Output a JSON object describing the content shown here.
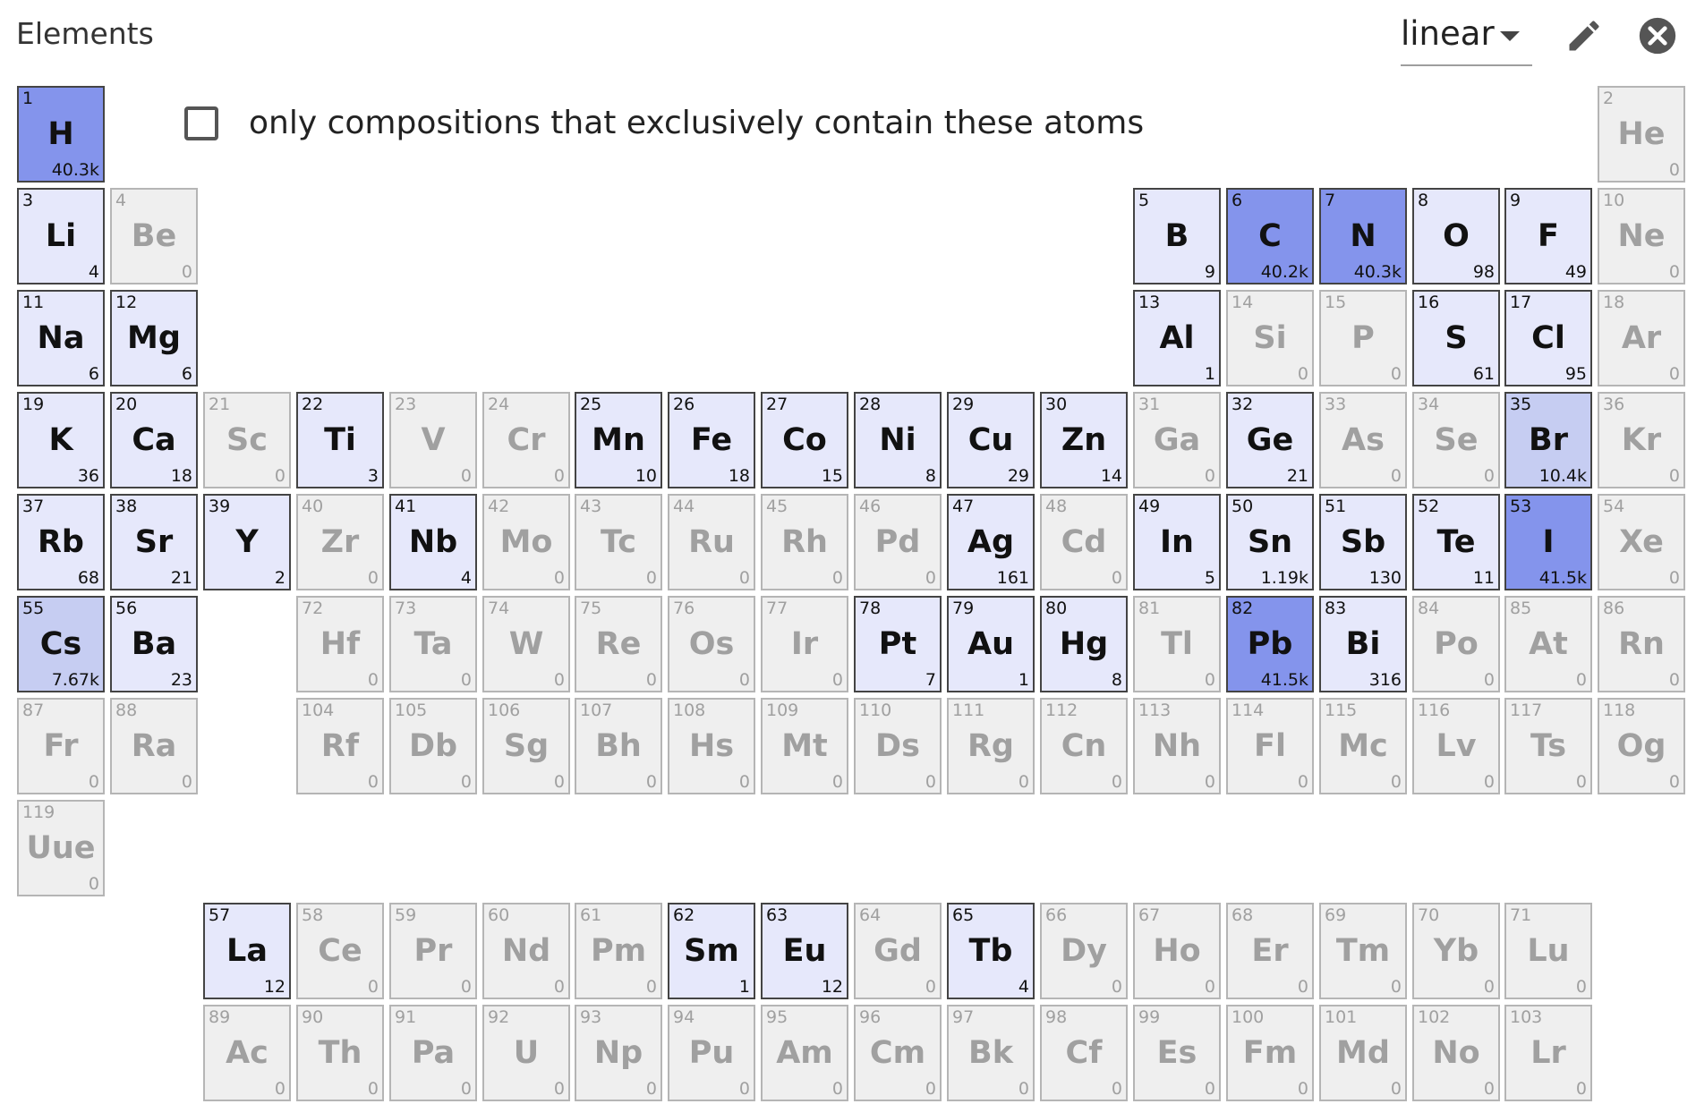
{
  "header": {
    "title": "Elements",
    "scale_value": "linear"
  },
  "filter": {
    "label": "only compositions that exclusively contain these atoms",
    "checked": false
  },
  "colors": {
    "inactive_fill": "#efefef",
    "light_fill": "#e6e8fb",
    "mid_fill": "#c6cdf2",
    "strong_fill": "#8494ec"
  },
  "elements": [
    {
      "z": "1",
      "symbol": "H",
      "count": "40.3k",
      "row": 1,
      "col": 1,
      "tone": "strong"
    },
    {
      "z": "2",
      "symbol": "He",
      "count": "0",
      "row": 1,
      "col": 18,
      "tone": "none"
    },
    {
      "z": "3",
      "symbol": "Li",
      "count": "4",
      "row": 2,
      "col": 1,
      "tone": "light"
    },
    {
      "z": "4",
      "symbol": "Be",
      "count": "0",
      "row": 2,
      "col": 2,
      "tone": "none"
    },
    {
      "z": "5",
      "symbol": "B",
      "count": "9",
      "row": 2,
      "col": 13,
      "tone": "light"
    },
    {
      "z": "6",
      "symbol": "C",
      "count": "40.2k",
      "row": 2,
      "col": 14,
      "tone": "strong"
    },
    {
      "z": "7",
      "symbol": "N",
      "count": "40.3k",
      "row": 2,
      "col": 15,
      "tone": "strong"
    },
    {
      "z": "8",
      "symbol": "O",
      "count": "98",
      "row": 2,
      "col": 16,
      "tone": "light"
    },
    {
      "z": "9",
      "symbol": "F",
      "count": "49",
      "row": 2,
      "col": 17,
      "tone": "light"
    },
    {
      "z": "10",
      "symbol": "Ne",
      "count": "0",
      "row": 2,
      "col": 18,
      "tone": "none"
    },
    {
      "z": "11",
      "symbol": "Na",
      "count": "6",
      "row": 3,
      "col": 1,
      "tone": "light"
    },
    {
      "z": "12",
      "symbol": "Mg",
      "count": "6",
      "row": 3,
      "col": 2,
      "tone": "light"
    },
    {
      "z": "13",
      "symbol": "Al",
      "count": "1",
      "row": 3,
      "col": 13,
      "tone": "light"
    },
    {
      "z": "14",
      "symbol": "Si",
      "count": "0",
      "row": 3,
      "col": 14,
      "tone": "none"
    },
    {
      "z": "15",
      "symbol": "P",
      "count": "0",
      "row": 3,
      "col": 15,
      "tone": "none"
    },
    {
      "z": "16",
      "symbol": "S",
      "count": "61",
      "row": 3,
      "col": 16,
      "tone": "light"
    },
    {
      "z": "17",
      "symbol": "Cl",
      "count": "95",
      "row": 3,
      "col": 17,
      "tone": "light"
    },
    {
      "z": "18",
      "symbol": "Ar",
      "count": "0",
      "row": 3,
      "col": 18,
      "tone": "none"
    },
    {
      "z": "19",
      "symbol": "K",
      "count": "36",
      "row": 4,
      "col": 1,
      "tone": "light"
    },
    {
      "z": "20",
      "symbol": "Ca",
      "count": "18",
      "row": 4,
      "col": 2,
      "tone": "light"
    },
    {
      "z": "21",
      "symbol": "Sc",
      "count": "0",
      "row": 4,
      "col": 3,
      "tone": "none"
    },
    {
      "z": "22",
      "symbol": "Ti",
      "count": "3",
      "row": 4,
      "col": 4,
      "tone": "light"
    },
    {
      "z": "23",
      "symbol": "V",
      "count": "0",
      "row": 4,
      "col": 5,
      "tone": "none"
    },
    {
      "z": "24",
      "symbol": "Cr",
      "count": "0",
      "row": 4,
      "col": 6,
      "tone": "none"
    },
    {
      "z": "25",
      "symbol": "Mn",
      "count": "10",
      "row": 4,
      "col": 7,
      "tone": "light"
    },
    {
      "z": "26",
      "symbol": "Fe",
      "count": "18",
      "row": 4,
      "col": 8,
      "tone": "light"
    },
    {
      "z": "27",
      "symbol": "Co",
      "count": "15",
      "row": 4,
      "col": 9,
      "tone": "light"
    },
    {
      "z": "28",
      "symbol": "Ni",
      "count": "8",
      "row": 4,
      "col": 10,
      "tone": "light"
    },
    {
      "z": "29",
      "symbol": "Cu",
      "count": "29",
      "row": 4,
      "col": 11,
      "tone": "light"
    },
    {
      "z": "30",
      "symbol": "Zn",
      "count": "14",
      "row": 4,
      "col": 12,
      "tone": "light"
    },
    {
      "z": "31",
      "symbol": "Ga",
      "count": "0",
      "row": 4,
      "col": 13,
      "tone": "none"
    },
    {
      "z": "32",
      "symbol": "Ge",
      "count": "21",
      "row": 4,
      "col": 14,
      "tone": "light"
    },
    {
      "z": "33",
      "symbol": "As",
      "count": "0",
      "row": 4,
      "col": 15,
      "tone": "none"
    },
    {
      "z": "34",
      "symbol": "Se",
      "count": "0",
      "row": 4,
      "col": 16,
      "tone": "none"
    },
    {
      "z": "35",
      "symbol": "Br",
      "count": "10.4k",
      "row": 4,
      "col": 17,
      "tone": "mid"
    },
    {
      "z": "36",
      "symbol": "Kr",
      "count": "0",
      "row": 4,
      "col": 18,
      "tone": "none"
    },
    {
      "z": "37",
      "symbol": "Rb",
      "count": "68",
      "row": 5,
      "col": 1,
      "tone": "light"
    },
    {
      "z": "38",
      "symbol": "Sr",
      "count": "21",
      "row": 5,
      "col": 2,
      "tone": "light"
    },
    {
      "z": "39",
      "symbol": "Y",
      "count": "2",
      "row": 5,
      "col": 3,
      "tone": "light"
    },
    {
      "z": "40",
      "symbol": "Zr",
      "count": "0",
      "row": 5,
      "col": 4,
      "tone": "none"
    },
    {
      "z": "41",
      "symbol": "Nb",
      "count": "4",
      "row": 5,
      "col": 5,
      "tone": "light"
    },
    {
      "z": "42",
      "symbol": "Mo",
      "count": "0",
      "row": 5,
      "col": 6,
      "tone": "none"
    },
    {
      "z": "43",
      "symbol": "Tc",
      "count": "0",
      "row": 5,
      "col": 7,
      "tone": "none"
    },
    {
      "z": "44",
      "symbol": "Ru",
      "count": "0",
      "row": 5,
      "col": 8,
      "tone": "none"
    },
    {
      "z": "45",
      "symbol": "Rh",
      "count": "0",
      "row": 5,
      "col": 9,
      "tone": "none"
    },
    {
      "z": "46",
      "symbol": "Pd",
      "count": "0",
      "row": 5,
      "col": 10,
      "tone": "none"
    },
    {
      "z": "47",
      "symbol": "Ag",
      "count": "161",
      "row": 5,
      "col": 11,
      "tone": "light"
    },
    {
      "z": "48",
      "symbol": "Cd",
      "count": "0",
      "row": 5,
      "col": 12,
      "tone": "none"
    },
    {
      "z": "49",
      "symbol": "In",
      "count": "5",
      "row": 5,
      "col": 13,
      "tone": "light"
    },
    {
      "z": "50",
      "symbol": "Sn",
      "count": "1.19k",
      "row": 5,
      "col": 14,
      "tone": "light"
    },
    {
      "z": "51",
      "symbol": "Sb",
      "count": "130",
      "row": 5,
      "col": 15,
      "tone": "light"
    },
    {
      "z": "52",
      "symbol": "Te",
      "count": "11",
      "row": 5,
      "col": 16,
      "tone": "light"
    },
    {
      "z": "53",
      "symbol": "I",
      "count": "41.5k",
      "row": 5,
      "col": 17,
      "tone": "strong"
    },
    {
      "z": "54",
      "symbol": "Xe",
      "count": "0",
      "row": 5,
      "col": 18,
      "tone": "none"
    },
    {
      "z": "55",
      "symbol": "Cs",
      "count": "7.67k",
      "row": 6,
      "col": 1,
      "tone": "mid"
    },
    {
      "z": "56",
      "symbol": "Ba",
      "count": "23",
      "row": 6,
      "col": 2,
      "tone": "light"
    },
    {
      "z": "72",
      "symbol": "Hf",
      "count": "0",
      "row": 6,
      "col": 4,
      "tone": "none"
    },
    {
      "z": "73",
      "symbol": "Ta",
      "count": "0",
      "row": 6,
      "col": 5,
      "tone": "none"
    },
    {
      "z": "74",
      "symbol": "W",
      "count": "0",
      "row": 6,
      "col": 6,
      "tone": "none"
    },
    {
      "z": "75",
      "symbol": "Re",
      "count": "0",
      "row": 6,
      "col": 7,
      "tone": "none"
    },
    {
      "z": "76",
      "symbol": "Os",
      "count": "0",
      "row": 6,
      "col": 8,
      "tone": "none"
    },
    {
      "z": "77",
      "symbol": "Ir",
      "count": "0",
      "row": 6,
      "col": 9,
      "tone": "none"
    },
    {
      "z": "78",
      "symbol": "Pt",
      "count": "7",
      "row": 6,
      "col": 10,
      "tone": "light"
    },
    {
      "z": "79",
      "symbol": "Au",
      "count": "1",
      "row": 6,
      "col": 11,
      "tone": "light"
    },
    {
      "z": "80",
      "symbol": "Hg",
      "count": "8",
      "row": 6,
      "col": 12,
      "tone": "light"
    },
    {
      "z": "81",
      "symbol": "Tl",
      "count": "0",
      "row": 6,
      "col": 13,
      "tone": "none"
    },
    {
      "z": "82",
      "symbol": "Pb",
      "count": "41.5k",
      "row": 6,
      "col": 14,
      "tone": "strong"
    },
    {
      "z": "83",
      "symbol": "Bi",
      "count": "316",
      "row": 6,
      "col": 15,
      "tone": "light"
    },
    {
      "z": "84",
      "symbol": "Po",
      "count": "0",
      "row": 6,
      "col": 16,
      "tone": "none"
    },
    {
      "z": "85",
      "symbol": "At",
      "count": "0",
      "row": 6,
      "col": 17,
      "tone": "none"
    },
    {
      "z": "86",
      "symbol": "Rn",
      "count": "0",
      "row": 6,
      "col": 18,
      "tone": "none"
    },
    {
      "z": "87",
      "symbol": "Fr",
      "count": "0",
      "row": 7,
      "col": 1,
      "tone": "none"
    },
    {
      "z": "88",
      "symbol": "Ra",
      "count": "0",
      "row": 7,
      "col": 2,
      "tone": "none"
    },
    {
      "z": "104",
      "symbol": "Rf",
      "count": "0",
      "row": 7,
      "col": 4,
      "tone": "none"
    },
    {
      "z": "105",
      "symbol": "Db",
      "count": "0",
      "row": 7,
      "col": 5,
      "tone": "none"
    },
    {
      "z": "106",
      "symbol": "Sg",
      "count": "0",
      "row": 7,
      "col": 6,
      "tone": "none"
    },
    {
      "z": "107",
      "symbol": "Bh",
      "count": "0",
      "row": 7,
      "col": 7,
      "tone": "none"
    },
    {
      "z": "108",
      "symbol": "Hs",
      "count": "0",
      "row": 7,
      "col": 8,
      "tone": "none"
    },
    {
      "z": "109",
      "symbol": "Mt",
      "count": "0",
      "row": 7,
      "col": 9,
      "tone": "none"
    },
    {
      "z": "110",
      "symbol": "Ds",
      "count": "0",
      "row": 7,
      "col": 10,
      "tone": "none"
    },
    {
      "z": "111",
      "symbol": "Rg",
      "count": "0",
      "row": 7,
      "col": 11,
      "tone": "none"
    },
    {
      "z": "112",
      "symbol": "Cn",
      "count": "0",
      "row": 7,
      "col": 12,
      "tone": "none"
    },
    {
      "z": "113",
      "symbol": "Nh",
      "count": "0",
      "row": 7,
      "col": 13,
      "tone": "none"
    },
    {
      "z": "114",
      "symbol": "Fl",
      "count": "0",
      "row": 7,
      "col": 14,
      "tone": "none"
    },
    {
      "z": "115",
      "symbol": "Mc",
      "count": "0",
      "row": 7,
      "col": 15,
      "tone": "none"
    },
    {
      "z": "116",
      "symbol": "Lv",
      "count": "0",
      "row": 7,
      "col": 16,
      "tone": "none"
    },
    {
      "z": "117",
      "symbol": "Ts",
      "count": "0",
      "row": 7,
      "col": 17,
      "tone": "none"
    },
    {
      "z": "118",
      "symbol": "Og",
      "count": "0",
      "row": 7,
      "col": 18,
      "tone": "none"
    },
    {
      "z": "119",
      "symbol": "Uue",
      "count": "0",
      "row": 8,
      "col": 1,
      "tone": "none"
    },
    {
      "z": "57",
      "symbol": "La",
      "count": "12",
      "row": 9,
      "col": 3,
      "tone": "light"
    },
    {
      "z": "58",
      "symbol": "Ce",
      "count": "0",
      "row": 9,
      "col": 4,
      "tone": "none"
    },
    {
      "z": "59",
      "symbol": "Pr",
      "count": "0",
      "row": 9,
      "col": 5,
      "tone": "none"
    },
    {
      "z": "60",
      "symbol": "Nd",
      "count": "0",
      "row": 9,
      "col": 6,
      "tone": "none"
    },
    {
      "z": "61",
      "symbol": "Pm",
      "count": "0",
      "row": 9,
      "col": 7,
      "tone": "none"
    },
    {
      "z": "62",
      "symbol": "Sm",
      "count": "1",
      "row": 9,
      "col": 8,
      "tone": "light"
    },
    {
      "z": "63",
      "symbol": "Eu",
      "count": "12",
      "row": 9,
      "col": 9,
      "tone": "light"
    },
    {
      "z": "64",
      "symbol": "Gd",
      "count": "0",
      "row": 9,
      "col": 10,
      "tone": "none"
    },
    {
      "z": "65",
      "symbol": "Tb",
      "count": "4",
      "row": 9,
      "col": 11,
      "tone": "light"
    },
    {
      "z": "66",
      "symbol": "Dy",
      "count": "0",
      "row": 9,
      "col": 12,
      "tone": "none"
    },
    {
      "z": "67",
      "symbol": "Ho",
      "count": "0",
      "row": 9,
      "col": 13,
      "tone": "none"
    },
    {
      "z": "68",
      "symbol": "Er",
      "count": "0",
      "row": 9,
      "col": 14,
      "tone": "none"
    },
    {
      "z": "69",
      "symbol": "Tm",
      "count": "0",
      "row": 9,
      "col": 15,
      "tone": "none"
    },
    {
      "z": "70",
      "symbol": "Yb",
      "count": "0",
      "row": 9,
      "col": 16,
      "tone": "none"
    },
    {
      "z": "71",
      "symbol": "Lu",
      "count": "0",
      "row": 9,
      "col": 17,
      "tone": "none"
    },
    {
      "z": "89",
      "symbol": "Ac",
      "count": "0",
      "row": 10,
      "col": 3,
      "tone": "none"
    },
    {
      "z": "90",
      "symbol": "Th",
      "count": "0",
      "row": 10,
      "col": 4,
      "tone": "none"
    },
    {
      "z": "91",
      "symbol": "Pa",
      "count": "0",
      "row": 10,
      "col": 5,
      "tone": "none"
    },
    {
      "z": "92",
      "symbol": "U",
      "count": "0",
      "row": 10,
      "col": 6,
      "tone": "none"
    },
    {
      "z": "93",
      "symbol": "Np",
      "count": "0",
      "row": 10,
      "col": 7,
      "tone": "none"
    },
    {
      "z": "94",
      "symbol": "Pu",
      "count": "0",
      "row": 10,
      "col": 8,
      "tone": "none"
    },
    {
      "z": "95",
      "symbol": "Am",
      "count": "0",
      "row": 10,
      "col": 9,
      "tone": "none"
    },
    {
      "z": "96",
      "symbol": "Cm",
      "count": "0",
      "row": 10,
      "col": 10,
      "tone": "none"
    },
    {
      "z": "97",
      "symbol": "Bk",
      "count": "0",
      "row": 10,
      "col": 11,
      "tone": "none"
    },
    {
      "z": "98",
      "symbol": "Cf",
      "count": "0",
      "row": 10,
      "col": 12,
      "tone": "none"
    },
    {
      "z": "99",
      "symbol": "Es",
      "count": "0",
      "row": 10,
      "col": 13,
      "tone": "none"
    },
    {
      "z": "100",
      "symbol": "Fm",
      "count": "0",
      "row": 10,
      "col": 14,
      "tone": "none"
    },
    {
      "z": "101",
      "symbol": "Md",
      "count": "0",
      "row": 10,
      "col": 15,
      "tone": "none"
    },
    {
      "z": "102",
      "symbol": "No",
      "count": "0",
      "row": 10,
      "col": 16,
      "tone": "none"
    },
    {
      "z": "103",
      "symbol": "Lr",
      "count": "0",
      "row": 10,
      "col": 17,
      "tone": "none"
    }
  ]
}
